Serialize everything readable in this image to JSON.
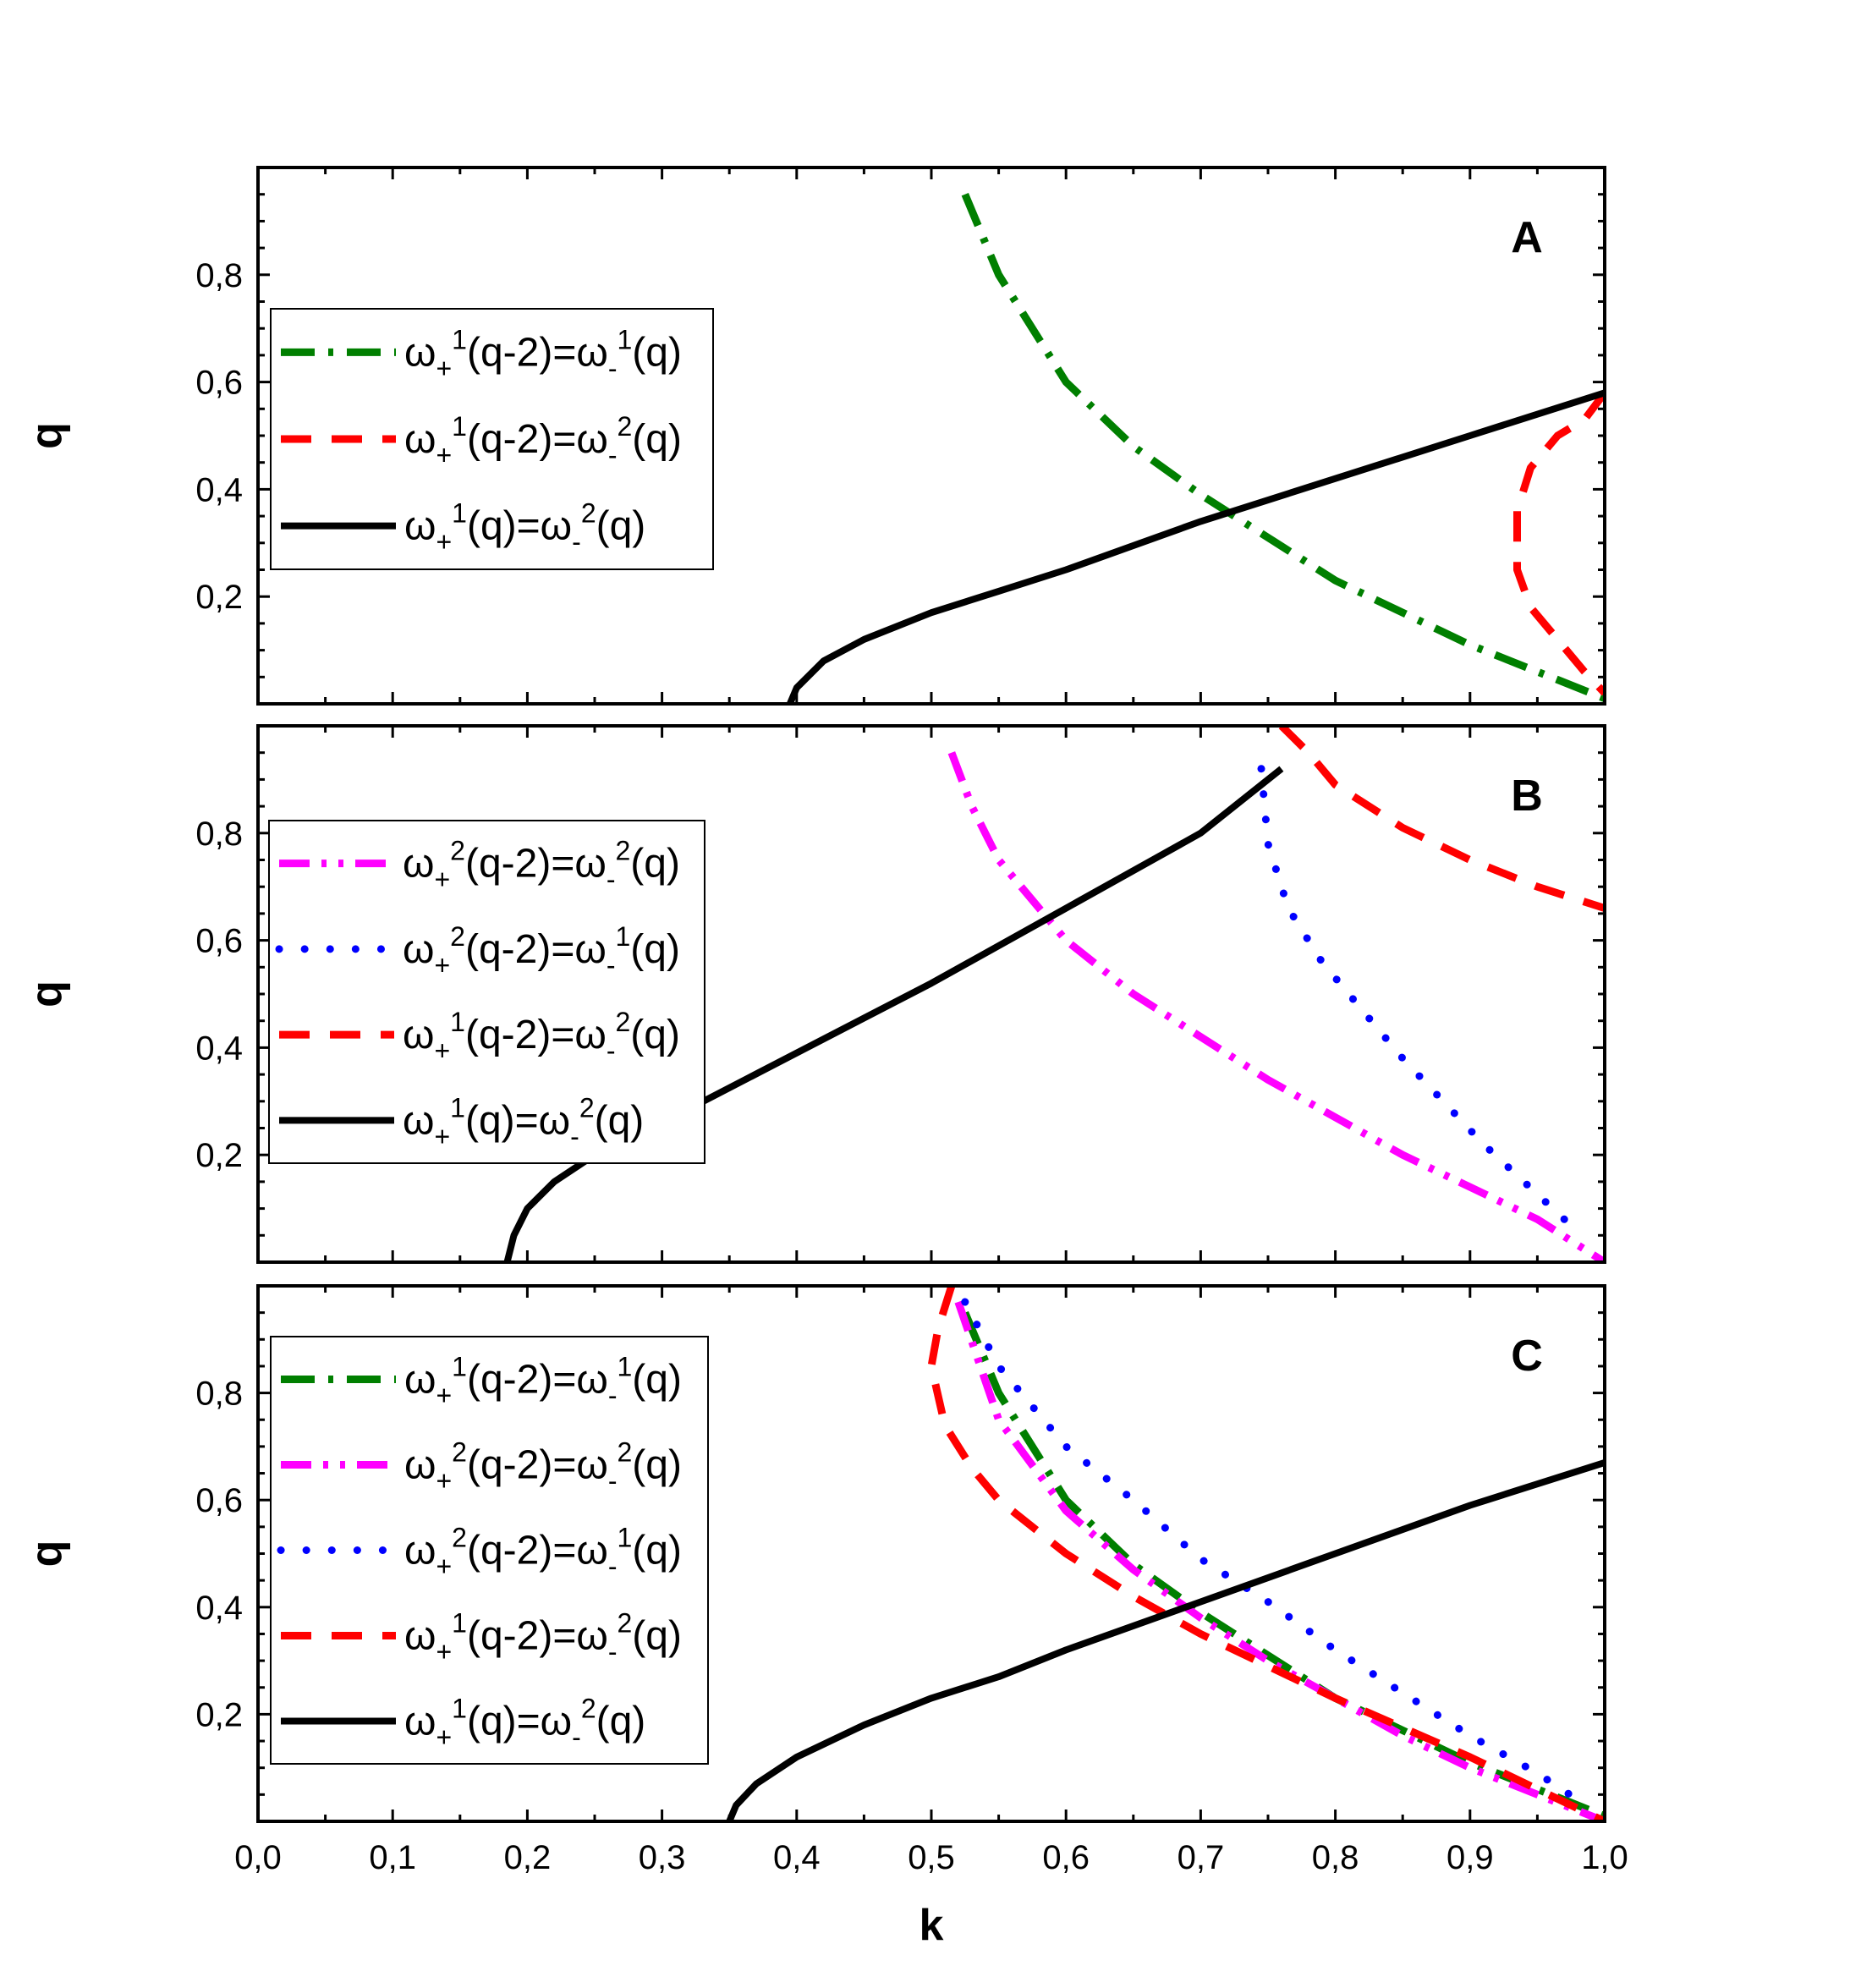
{
  "chart_data": [
    {
      "type": "line",
      "panel_label": "A",
      "xlabel": "k",
      "ylabel": "q",
      "xlim": [
        0.0,
        1.0
      ],
      "ylim": [
        0.0,
        1.0
      ],
      "y_ticks": [
        "0,2",
        "0,4",
        "0,6",
        "0,8"
      ],
      "legend_position": "middle-left",
      "series": [
        {
          "name": "ω₊¹(q-2)=ω₋¹(q)",
          "label": {
            "w1": "ω",
            "s1": "+",
            "p1": "1",
            "mid": "(q-2)=",
            "w2": "ω",
            "s2": "-",
            "p2": "1",
            "end": "(q)"
          },
          "style": "dash-dot",
          "color": "#007f00",
          "x": [
            0.525,
            0.55,
            0.6,
            0.65,
            0.7,
            0.75,
            0.8,
            0.85,
            0.9,
            0.95,
            1.0
          ],
          "y": [
            0.95,
            0.8,
            0.6,
            0.48,
            0.39,
            0.31,
            0.23,
            0.17,
            0.11,
            0.06,
            0.01
          ]
        },
        {
          "name": "ω₊¹(q-2)=ω₋²(q)",
          "label": {
            "w1": "ω",
            "s1": "+",
            "p1": "1",
            "mid": "(q-2)=",
            "w2": "ω",
            "s2": "-",
            "p2": "2",
            "end": "(q)"
          },
          "style": "dash",
          "color": "#ff0000",
          "x": [
            1.0,
            0.985,
            0.965,
            0.945,
            0.935,
            0.935,
            0.945,
            0.965,
            0.985,
            1.0
          ],
          "y": [
            0.58,
            0.53,
            0.5,
            0.44,
            0.36,
            0.25,
            0.18,
            0.12,
            0.06,
            0.02
          ]
        },
        {
          "name": "ω₊¹(q)=ω₋²(q)",
          "label": {
            "w1": "ω",
            "s1": "+",
            "p1": "1",
            "mid": "(q)=",
            "w2": "ω",
            "s2": "-",
            "p2": "2",
            "end": "(q)"
          },
          "style": "solid",
          "color": "#000000",
          "x": [
            0.395,
            0.4,
            0.42,
            0.45,
            0.5,
            0.55,
            0.6,
            0.7,
            0.8,
            0.9,
            1.0
          ],
          "y": [
            0.0,
            0.03,
            0.08,
            0.12,
            0.17,
            0.21,
            0.25,
            0.34,
            0.42,
            0.5,
            0.58
          ]
        }
      ]
    },
    {
      "type": "line",
      "panel_label": "B",
      "xlabel": "k",
      "ylabel": "q",
      "xlim": [
        0.0,
        1.0
      ],
      "ylim": [
        0.0,
        1.0
      ],
      "y_ticks": [
        "0,2",
        "0,4",
        "0,6",
        "0,8"
      ],
      "legend_position": "left",
      "series": [
        {
          "name": "ω₊²(q-2)=ω₋²(q)",
          "label": {
            "w1": "ω",
            "s1": "+",
            "p1": "2",
            "mid": "(q-2)=",
            "w2": "ω",
            "s2": "-",
            "p2": "2",
            "end": "(q)"
          },
          "style": "dash-dot-dot",
          "color": "#ff00ff",
          "x": [
            0.515,
            0.53,
            0.55,
            0.6,
            0.65,
            0.7,
            0.75,
            0.8,
            0.85,
            0.9,
            0.95,
            1.0
          ],
          "y": [
            0.95,
            0.85,
            0.75,
            0.6,
            0.5,
            0.42,
            0.34,
            0.27,
            0.2,
            0.14,
            0.08,
            0.0
          ]
        },
        {
          "name": "ω₊²(q-2)=ω₋¹(q)",
          "label": {
            "w1": "ω",
            "s1": "+",
            "p1": "2",
            "mid": "(q-2)=",
            "w2": "ω",
            "s2": "-",
            "p2": "1",
            "end": "(q)"
          },
          "style": "dot",
          "color": "#0000ff",
          "x": [
            0.745,
            0.75,
            0.765,
            0.79,
            0.82,
            0.85,
            0.88,
            0.91,
            0.94,
            0.97
          ],
          "y": [
            0.92,
            0.78,
            0.66,
            0.56,
            0.47,
            0.38,
            0.3,
            0.22,
            0.15,
            0.08
          ]
        },
        {
          "name": "ω₊¹(q-2)=ω₋²(q)",
          "label": {
            "w1": "ω",
            "s1": "+",
            "p1": "1",
            "mid": "(q-2)=",
            "w2": "ω",
            "s2": "-",
            "p2": "2",
            "end": "(q)"
          },
          "style": "dash",
          "color": "#ff0000",
          "x": [
            0.76,
            0.78,
            0.8,
            0.85,
            0.9,
            0.95,
            1.0
          ],
          "y": [
            1.0,
            0.95,
            0.89,
            0.81,
            0.75,
            0.7,
            0.66
          ]
        },
        {
          "name": "ω₊¹(q)=ω₋²(q)",
          "label": {
            "w1": "ω",
            "s1": "+",
            "p1": "1",
            "mid": "(q)=",
            "w2": "ω",
            "s2": "-",
            "p2": "2",
            "end": "(q)"
          },
          "style": "solid",
          "color": "#000000",
          "x": [
            0.185,
            0.19,
            0.2,
            0.22,
            0.25,
            0.3,
            0.4,
            0.5,
            0.6,
            0.7,
            0.76
          ],
          "y": [
            0.0,
            0.05,
            0.1,
            0.15,
            0.2,
            0.26,
            0.39,
            0.52,
            0.66,
            0.8,
            0.92
          ]
        }
      ]
    },
    {
      "type": "line",
      "panel_label": "C",
      "xlabel": "k",
      "ylabel": "q",
      "xlim": [
        0.0,
        1.0
      ],
      "ylim": [
        0.0,
        1.0
      ],
      "x_ticks": [
        "0,0",
        "0,1",
        "0,2",
        "0,3",
        "0,4",
        "0,5",
        "0,6",
        "0,7",
        "0,8",
        "0,9",
        "1,0"
      ],
      "y_ticks": [
        "0,2",
        "0,4",
        "0,6",
        "0,8"
      ],
      "legend_position": "left",
      "series": [
        {
          "name": "ω₊¹(q-2)=ω₋¹(q)",
          "label": {
            "w1": "ω",
            "s1": "+",
            "p1": "1",
            "mid": "(q-2)=",
            "w2": "ω",
            "s2": "-",
            "p2": "1",
            "end": "(q)"
          },
          "style": "dash-dot",
          "color": "#007f00",
          "x": [
            0.525,
            0.55,
            0.6,
            0.65,
            0.7,
            0.75,
            0.8,
            0.85,
            0.9,
            0.95,
            1.0
          ],
          "y": [
            0.95,
            0.8,
            0.6,
            0.48,
            0.39,
            0.31,
            0.23,
            0.17,
            0.11,
            0.06,
            0.01
          ]
        },
        {
          "name": "ω₊²(q-2)=ω₋²(q)",
          "label": {
            "w1": "ω",
            "s1": "+",
            "p1": "2",
            "mid": "(q-2)=",
            "w2": "ω",
            "s2": "-",
            "p2": "2",
            "end": "(q)"
          },
          "style": "dash-dot-dot",
          "color": "#ff00ff",
          "x": [
            0.52,
            0.55,
            0.6,
            0.65,
            0.7,
            0.75,
            0.8,
            0.85,
            0.9,
            0.95,
            1.0
          ],
          "y": [
            0.97,
            0.75,
            0.58,
            0.47,
            0.38,
            0.3,
            0.23,
            0.16,
            0.1,
            0.05,
            0.0
          ]
        },
        {
          "name": "ω₊²(q-2)=ω₋¹(q)",
          "label": {
            "w1": "ω",
            "s1": "+",
            "p1": "2",
            "mid": "(q-2)=",
            "w2": "ω",
            "s2": "-",
            "p2": "1",
            "end": "(q)"
          },
          "style": "dot",
          "color": "#0000ff",
          "x": [
            0.525,
            0.55,
            0.6,
            0.65,
            0.7,
            0.75,
            0.8,
            0.85,
            0.9,
            0.95,
            0.98
          ],
          "y": [
            0.97,
            0.85,
            0.7,
            0.6,
            0.49,
            0.41,
            0.32,
            0.24,
            0.16,
            0.09,
            0.04
          ]
        },
        {
          "name": "ω₊¹(q-2)=ω₋²(q)",
          "label": {
            "w1": "ω",
            "s1": "+",
            "p1": "1",
            "mid": "(q-2)=",
            "w2": "ω",
            "s2": "-",
            "p2": "2",
            "end": "(q)"
          },
          "style": "dash",
          "color": "#ff0000",
          "x": [
            0.515,
            0.505,
            0.5,
            0.51,
            0.53,
            0.55,
            0.6,
            0.65,
            0.7,
            0.8,
            0.9,
            1.0
          ],
          "y": [
            1.0,
            0.92,
            0.85,
            0.74,
            0.66,
            0.6,
            0.5,
            0.42,
            0.35,
            0.23,
            0.12,
            0.0
          ]
        },
        {
          "name": "ω₊¹(q)=ω₋²(q)",
          "label": {
            "w1": "ω",
            "s1": "+",
            "p1": "1",
            "mid": "(q)=",
            "w2": "ω",
            "s2": "-",
            "p2": "2",
            "end": "(q)"
          },
          "style": "solid",
          "color": "#000000",
          "x": [
            0.35,
            0.355,
            0.37,
            0.4,
            0.45,
            0.5,
            0.55,
            0.6,
            0.7,
            0.8,
            0.9,
            1.0
          ],
          "y": [
            0.0,
            0.03,
            0.07,
            0.12,
            0.18,
            0.23,
            0.27,
            0.32,
            0.41,
            0.5,
            0.59,
            0.67
          ]
        }
      ]
    }
  ]
}
